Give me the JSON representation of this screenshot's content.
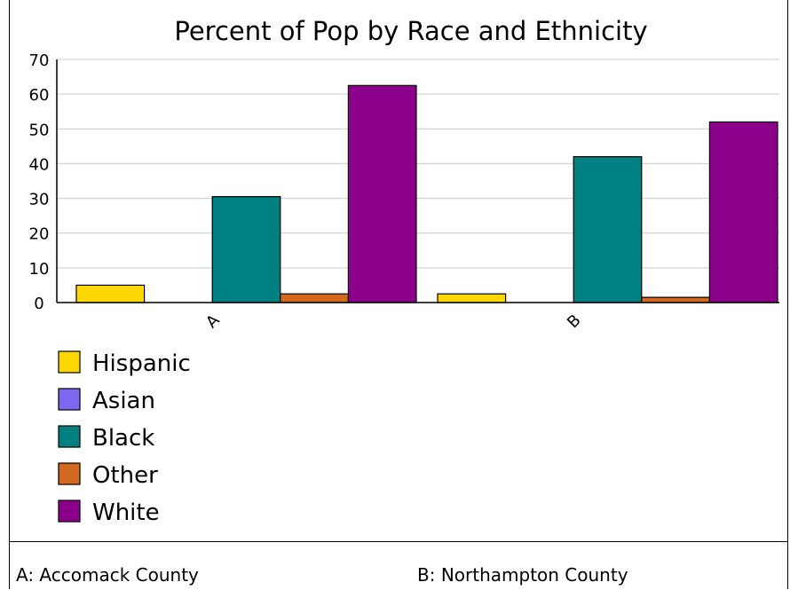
{
  "chart_data": {
    "type": "bar",
    "title": "Percent of Pop by Race and Ethnicity",
    "categories": [
      "A",
      "B"
    ],
    "series": [
      {
        "name": "Hispanic",
        "color": "#FFD700",
        "values": [
          5,
          2.5
        ]
      },
      {
        "name": "Asian",
        "color": "#7B68EE",
        "values": [
          0,
          0
        ]
      },
      {
        "name": "Black",
        "color": "#008080",
        "values": [
          30.5,
          42
        ]
      },
      {
        "name": "Other",
        "color": "#D2691E",
        "values": [
          2.5,
          1.5
        ]
      },
      {
        "name": "White",
        "color": "#8B008B",
        "values": [
          62.5,
          52
        ]
      }
    ],
    "yticks": [
      0,
      10,
      20,
      30,
      40,
      50,
      60,
      70
    ],
    "ylim": [
      0,
      70
    ],
    "grid": true,
    "legend_position": "bottom-left"
  },
  "footnotes": {
    "a": "A: Accomack County",
    "b": "B: Northampton County"
  }
}
